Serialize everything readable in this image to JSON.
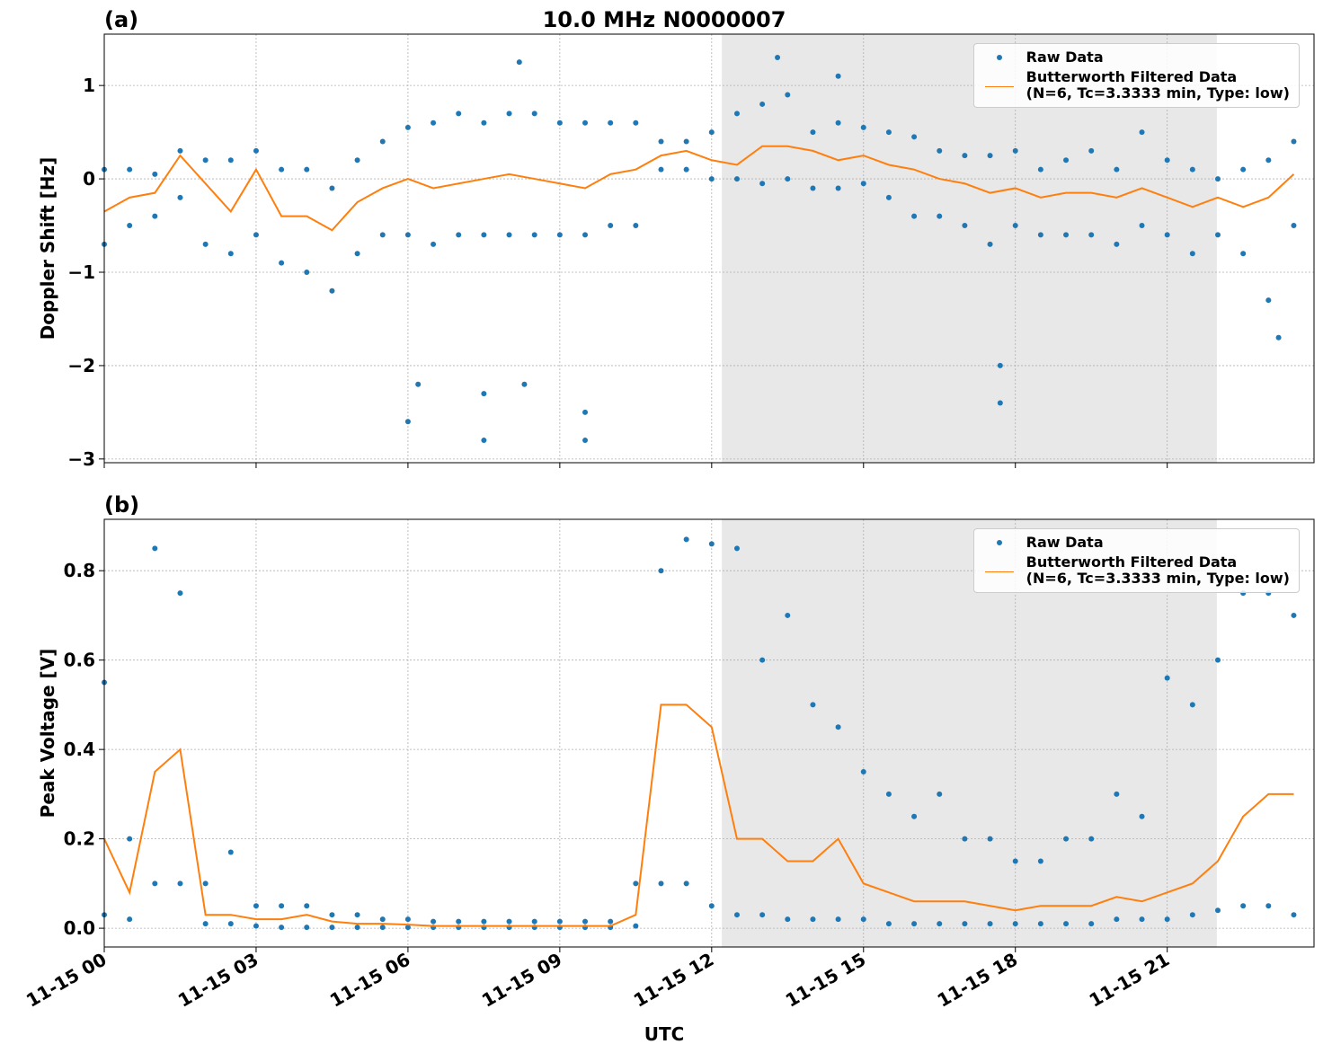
{
  "chart_data": [
    {
      "type": "scatter-line",
      "title": "10.0 MHz N0000007",
      "panel_label": "(a)",
      "ylabel": "Doppler Shift [Hz]",
      "xlim": [
        0,
        23.9
      ],
      "ylim": [
        -3.04,
        1.55
      ],
      "grid": true,
      "legend": "upper right",
      "shaded_span": [
        12.2,
        21.98
      ],
      "xticks": [
        0,
        3,
        6,
        9,
        12,
        15,
        18,
        21
      ],
      "yticks": [
        {
          "value": -3,
          "label": "−3"
        },
        {
          "value": -2,
          "label": "−2"
        },
        {
          "value": -1,
          "label": "−1"
        },
        0,
        1
      ],
      "series": [
        {
          "name": "Raw Data",
          "color": "#1f77b4",
          "x": [
            0,
            0.5,
            1,
            1.5,
            2,
            2.5,
            3,
            3.5,
            4,
            4.5,
            5,
            5.5,
            6,
            6.5,
            7,
            7.5,
            8,
            8.5,
            9,
            9.5,
            10,
            10.5,
            11,
            11.5,
            12,
            12.5,
            13,
            13.5,
            14,
            14.5,
            15,
            15.5,
            16,
            16.5,
            17,
            17.5,
            18,
            18.5,
            19,
            19.5,
            20,
            20.5,
            21,
            21.5,
            22,
            22.5,
            23,
            23.5,
            0,
            0.5,
            1,
            1.5,
            2,
            2.5,
            3,
            3.5,
            4,
            4.5,
            5,
            5.5,
            6,
            6.5,
            7,
            7.5,
            8,
            8.5,
            9,
            9.5,
            10,
            10.5,
            11,
            11.5,
            12,
            12.5,
            13,
            13.5,
            14,
            14.5,
            15,
            15.5,
            16,
            16.5,
            17,
            17.5,
            18,
            18.5,
            19,
            19.5,
            20,
            20.5,
            21,
            21.5,
            22,
            22.5,
            23,
            23.5,
            6,
            6.2,
            7.5,
            7.5,
            8.3,
            9.5,
            9.5,
            17.7,
            17.7,
            8.2,
            13.3,
            14.5,
            23.2
          ],
          "values": [
            0.1,
            0.1,
            0.05,
            0.3,
            0.2,
            0.2,
            0.3,
            0.1,
            0.1,
            -0.1,
            0.2,
            0.4,
            0.55,
            0.6,
            0.7,
            0.6,
            0.7,
            0.7,
            0.6,
            0.6,
            0.6,
            0.6,
            0.4,
            0.4,
            0.5,
            0.7,
            0.8,
            0.9,
            0.5,
            0.6,
            0.55,
            0.5,
            0.45,
            0.3,
            0.25,
            0.25,
            0.3,
            0.1,
            0.2,
            0.3,
            0.1,
            0.5,
            0.2,
            0.1,
            0.0,
            0.1,
            0.2,
            0.4,
            -0.7,
            -0.5,
            -0.4,
            -0.2,
            -0.7,
            -0.8,
            -0.6,
            -0.9,
            -1.0,
            -1.2,
            -0.8,
            -0.6,
            -0.6,
            -0.7,
            -0.6,
            -0.6,
            -0.6,
            -0.6,
            -0.6,
            -0.6,
            -0.5,
            -0.5,
            0.1,
            0.1,
            0.0,
            0.0,
            -0.05,
            0.0,
            -0.1,
            -0.1,
            -0.05,
            -0.2,
            -0.4,
            -0.4,
            -0.5,
            -0.7,
            -0.5,
            -0.6,
            -0.6,
            -0.6,
            -0.7,
            -0.5,
            -0.6,
            -0.8,
            -0.6,
            -0.8,
            -1.3,
            -0.5,
            -2.6,
            -2.2,
            -2.8,
            -2.3,
            -2.2,
            -2.8,
            -2.5,
            -2.4,
            -2.0,
            1.25,
            1.3,
            1.1,
            -1.7
          ]
        },
        {
          "name": "Butterworth Filtered Data\n(N=6, Tc=3.3333 min, Type: low)",
          "color": "#ff7f0e",
          "x": [
            0,
            0.5,
            1,
            1.5,
            2,
            2.5,
            3,
            3.5,
            4,
            4.5,
            5,
            5.5,
            6,
            6.5,
            7,
            7.5,
            8,
            8.5,
            9,
            9.5,
            10,
            10.5,
            11,
            11.5,
            12,
            12.5,
            13,
            13.5,
            14,
            14.5,
            15,
            15.5,
            16,
            16.5,
            17,
            17.5,
            18,
            18.5,
            19,
            19.5,
            20,
            20.5,
            21,
            21.5,
            22,
            22.5,
            23,
            23.5
          ],
          "values": [
            -0.35,
            -0.2,
            -0.15,
            0.25,
            -0.05,
            -0.35,
            0.1,
            -0.4,
            -0.4,
            -0.55,
            -0.25,
            -0.1,
            0.0,
            -0.1,
            -0.05,
            0.0,
            0.05,
            0.0,
            -0.05,
            -0.1,
            0.05,
            0.1,
            0.25,
            0.3,
            0.2,
            0.15,
            0.35,
            0.35,
            0.3,
            0.2,
            0.25,
            0.15,
            0.1,
            0.0,
            -0.05,
            -0.15,
            -0.1,
            -0.2,
            -0.15,
            -0.15,
            -0.2,
            -0.1,
            -0.2,
            -0.3,
            -0.2,
            -0.3,
            -0.2,
            0.05
          ]
        }
      ]
    },
    {
      "type": "scatter-line",
      "panel_label": "(b)",
      "ylabel": "Peak Voltage [V]",
      "xlabel": "UTC",
      "xlim": [
        0,
        23.9
      ],
      "ylim": [
        -0.042,
        0.915
      ],
      "grid": true,
      "legend": "upper right",
      "shaded_span": [
        12.2,
        21.98
      ],
      "xticks": [
        {
          "value": 0,
          "label": "11-15 00"
        },
        {
          "value": 3,
          "label": "11-15 03"
        },
        {
          "value": 6,
          "label": "11-15 06"
        },
        {
          "value": 9,
          "label": "11-15 09"
        },
        {
          "value": 12,
          "label": "11-15 12"
        },
        {
          "value": 15,
          "label": "11-15 15"
        },
        {
          "value": 18,
          "label": "11-15 18"
        },
        {
          "value": 21,
          "label": "11-15 21"
        }
      ],
      "yticks": [
        {
          "value": 0,
          "label": "0.0"
        },
        0.2,
        0.4,
        0.6,
        0.8
      ],
      "series": [
        {
          "name": "Raw Data",
          "color": "#1f77b4",
          "x": [
            0,
            0.5,
            1,
            1.5,
            2,
            2.5,
            3,
            3.5,
            4,
            4.5,
            5,
            5.5,
            6,
            6.5,
            7,
            7.5,
            8,
            8.5,
            9,
            9.5,
            10,
            10.5,
            11,
            11.5,
            12,
            12.5,
            13,
            13.5,
            14,
            14.5,
            15,
            15.5,
            16,
            16.5,
            17,
            17.5,
            18,
            18.5,
            19,
            19.5,
            20,
            20.5,
            21,
            21.5,
            22,
            22.5,
            23,
            23.5,
            0,
            0.5,
            1,
            1.5,
            2,
            2.5,
            3,
            3.5,
            4,
            4.5,
            5,
            5.5,
            6,
            6.5,
            7,
            7.5,
            8,
            8.5,
            9,
            9.5,
            10,
            10.5,
            11,
            11.5,
            12,
            12.5,
            13,
            13.5,
            14,
            14.5,
            15,
            15.5,
            16,
            16.5,
            17,
            17.5,
            18,
            18.5,
            19,
            19.5,
            20,
            20.5,
            21,
            21.5,
            22,
            22.5,
            23,
            23.5
          ],
          "values": [
            0.55,
            0.2,
            0.85,
            0.75,
            0.1,
            0.17,
            0.05,
            0.05,
            0.05,
            0.03,
            0.03,
            0.02,
            0.02,
            0.015,
            0.015,
            0.015,
            0.015,
            0.015,
            0.015,
            0.015,
            0.015,
            0.1,
            0.8,
            0.87,
            0.86,
            0.85,
            0.6,
            0.7,
            0.5,
            0.45,
            0.35,
            0.3,
            0.25,
            0.3,
            0.2,
            0.2,
            0.15,
            0.15,
            0.2,
            0.2,
            0.3,
            0.25,
            0.56,
            0.5,
            0.6,
            0.75,
            0.75,
            0.7,
            0.03,
            0.02,
            0.1,
            0.1,
            0.01,
            0.01,
            0.005,
            0.002,
            0.002,
            0.002,
            0.002,
            0.002,
            0.002,
            0.002,
            0.002,
            0.002,
            0.002,
            0.002,
            0.002,
            0.002,
            0.002,
            0.005,
            0.1,
            0.1,
            0.05,
            0.03,
            0.03,
            0.02,
            0.02,
            0.02,
            0.02,
            0.01,
            0.01,
            0.01,
            0.01,
            0.01,
            0.01,
            0.01,
            0.01,
            0.01,
            0.02,
            0.02,
            0.02,
            0.03,
            0.04,
            0.05,
            0.05,
            0.03
          ]
        },
        {
          "name": "Butterworth Filtered Data\n(N=6, Tc=3.3333 min, Type: low)",
          "color": "#ff7f0e",
          "x": [
            0,
            0.5,
            1,
            1.5,
            2,
            2.5,
            3,
            3.5,
            4,
            4.5,
            5,
            5.5,
            6,
            6.5,
            7,
            7.5,
            8,
            8.5,
            9,
            9.5,
            10,
            10.5,
            11,
            11.5,
            12,
            12.5,
            13,
            13.5,
            14,
            14.5,
            15,
            15.5,
            16,
            16.5,
            17,
            17.5,
            18,
            18.5,
            19,
            19.5,
            20,
            20.5,
            21,
            21.5,
            22,
            22.5,
            23,
            23.5
          ],
          "values": [
            0.2,
            0.08,
            0.35,
            0.4,
            0.03,
            0.03,
            0.02,
            0.02,
            0.03,
            0.015,
            0.01,
            0.01,
            0.008,
            0.005,
            0.005,
            0.005,
            0.005,
            0.005,
            0.005,
            0.005,
            0.005,
            0.03,
            0.5,
            0.5,
            0.45,
            0.2,
            0.2,
            0.15,
            0.15,
            0.2,
            0.1,
            0.08,
            0.06,
            0.06,
            0.06,
            0.05,
            0.04,
            0.05,
            0.05,
            0.05,
            0.07,
            0.06,
            0.08,
            0.1,
            0.15,
            0.25,
            0.3,
            0.3
          ]
        }
      ]
    }
  ]
}
